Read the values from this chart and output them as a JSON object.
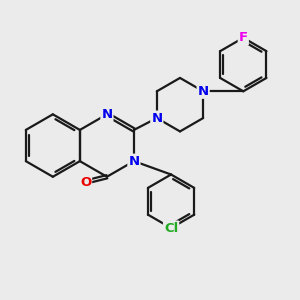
{
  "bg_color": "#ebebeb",
  "bond_color": "#1a1a1a",
  "N_color": "#0000ee",
  "O_color": "#ee0000",
  "F_color": "#ee00ee",
  "Cl_color": "#22aa22",
  "line_width": 1.6,
  "dbo": 0.055,
  "fs": 9.5,
  "figsize": [
    3.0,
    3.0
  ],
  "dpi": 100,
  "xlim": [
    0,
    10
  ],
  "ylim": [
    0,
    10
  ]
}
